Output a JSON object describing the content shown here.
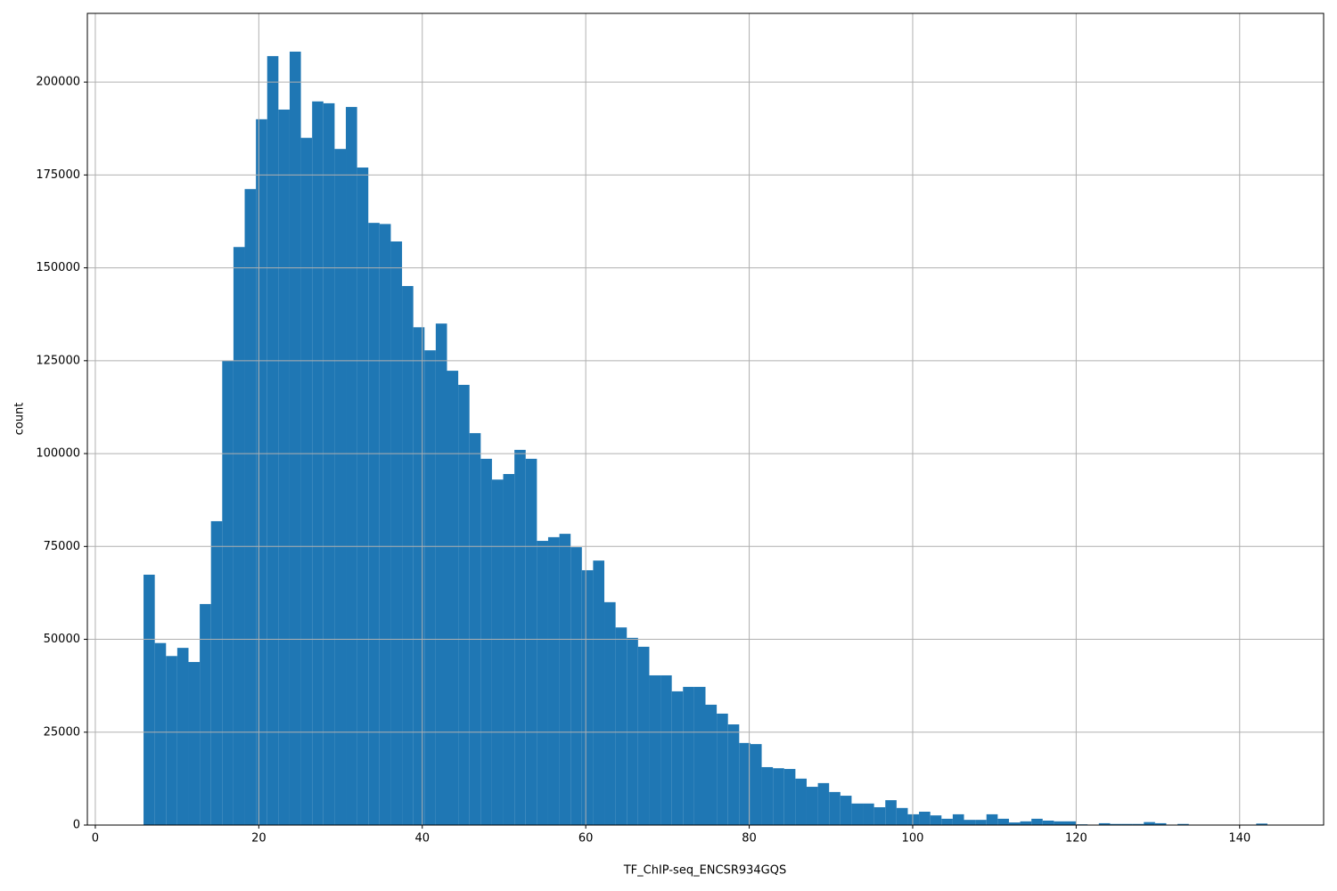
{
  "chart_data": {
    "type": "histogram",
    "xlabel": "TF_ChIP-seq_ENCSR934GQS",
    "ylabel": "count",
    "color": "#1f77b4",
    "grid": true,
    "bins": [
      5.9,
      7.275,
      8.65,
      10.025,
      11.4,
      12.775,
      14.15,
      15.525,
      16.9,
      18.275,
      19.65,
      21.025,
      22.4,
      23.775,
      25.15,
      26.525,
      27.9,
      29.275,
      30.65,
      32.025,
      33.4,
      34.775,
      36.15,
      37.525,
      38.9,
      40.275,
      41.65,
      43.025,
      44.4,
      45.775,
      47.15,
      48.525,
      49.9,
      51.275,
      52.65,
      54.025,
      55.4,
      56.775,
      58.15,
      59.525,
      60.9,
      62.275,
      63.65,
      65.025,
      66.4,
      67.775,
      69.15,
      70.525,
      71.9,
      73.275,
      74.65,
      76.025,
      77.4,
      78.775,
      80.15,
      81.525,
      82.9,
      84.275,
      85.65,
      87.025,
      88.4,
      89.775,
      91.15,
      92.525,
      93.9,
      95.275,
      96.65,
      98.025,
      99.4,
      100.775,
      102.15,
      103.525,
      104.9,
      106.275,
      107.65,
      109.025,
      110.4,
      111.775,
      113.15,
      114.525,
      115.9,
      117.275,
      118.65,
      120.025,
      121.4,
      122.775,
      124.15,
      125.525,
      126.9,
      128.275,
      129.65,
      131.025,
      132.4,
      133.775,
      135.15,
      136.525,
      137.9,
      139.275,
      140.65,
      142.025,
      143.4
    ],
    "counts": [
      67400,
      49000,
      45500,
      47700,
      43900,
      59500,
      81800,
      125000,
      155600,
      171200,
      190000,
      207000,
      192600,
      208200,
      185000,
      194800,
      194300,
      182000,
      193300,
      177000,
      162100,
      161800,
      157100,
      145100,
      134000,
      127800,
      135000,
      122300,
      118500,
      105500,
      98600,
      93000,
      94500,
      101000,
      98600,
      76500,
      77500,
      78400,
      74800,
      68600,
      71200,
      60000,
      53200,
      50400,
      48000,
      40300,
      40300,
      36000,
      37200,
      37200,
      32400,
      30000,
      27100,
      22100,
      21800,
      15600,
      15300,
      15100,
      12500,
      10300,
      11300,
      8900,
      7900,
      5800,
      5800,
      4800,
      6700,
      4600,
      2900,
      3600,
      2600,
      1700,
      2900,
      1400,
      1400,
      2900,
      1700,
      700,
      1000,
      1700,
      1200,
      1000,
      1000,
      200,
      100,
      500,
      300,
      300,
      300,
      800,
      500,
      100,
      300,
      100,
      100,
      100,
      100,
      100,
      100,
      400
    ],
    "xlim": [
      -0.975,
      150.275
    ],
    "ylim": [
      0,
      218500
    ],
    "xticks": [
      0,
      20,
      40,
      60,
      80,
      100,
      120,
      140
    ],
    "yticks": [
      0,
      25000,
      50000,
      75000,
      100000,
      125000,
      150000,
      175000,
      200000
    ]
  }
}
